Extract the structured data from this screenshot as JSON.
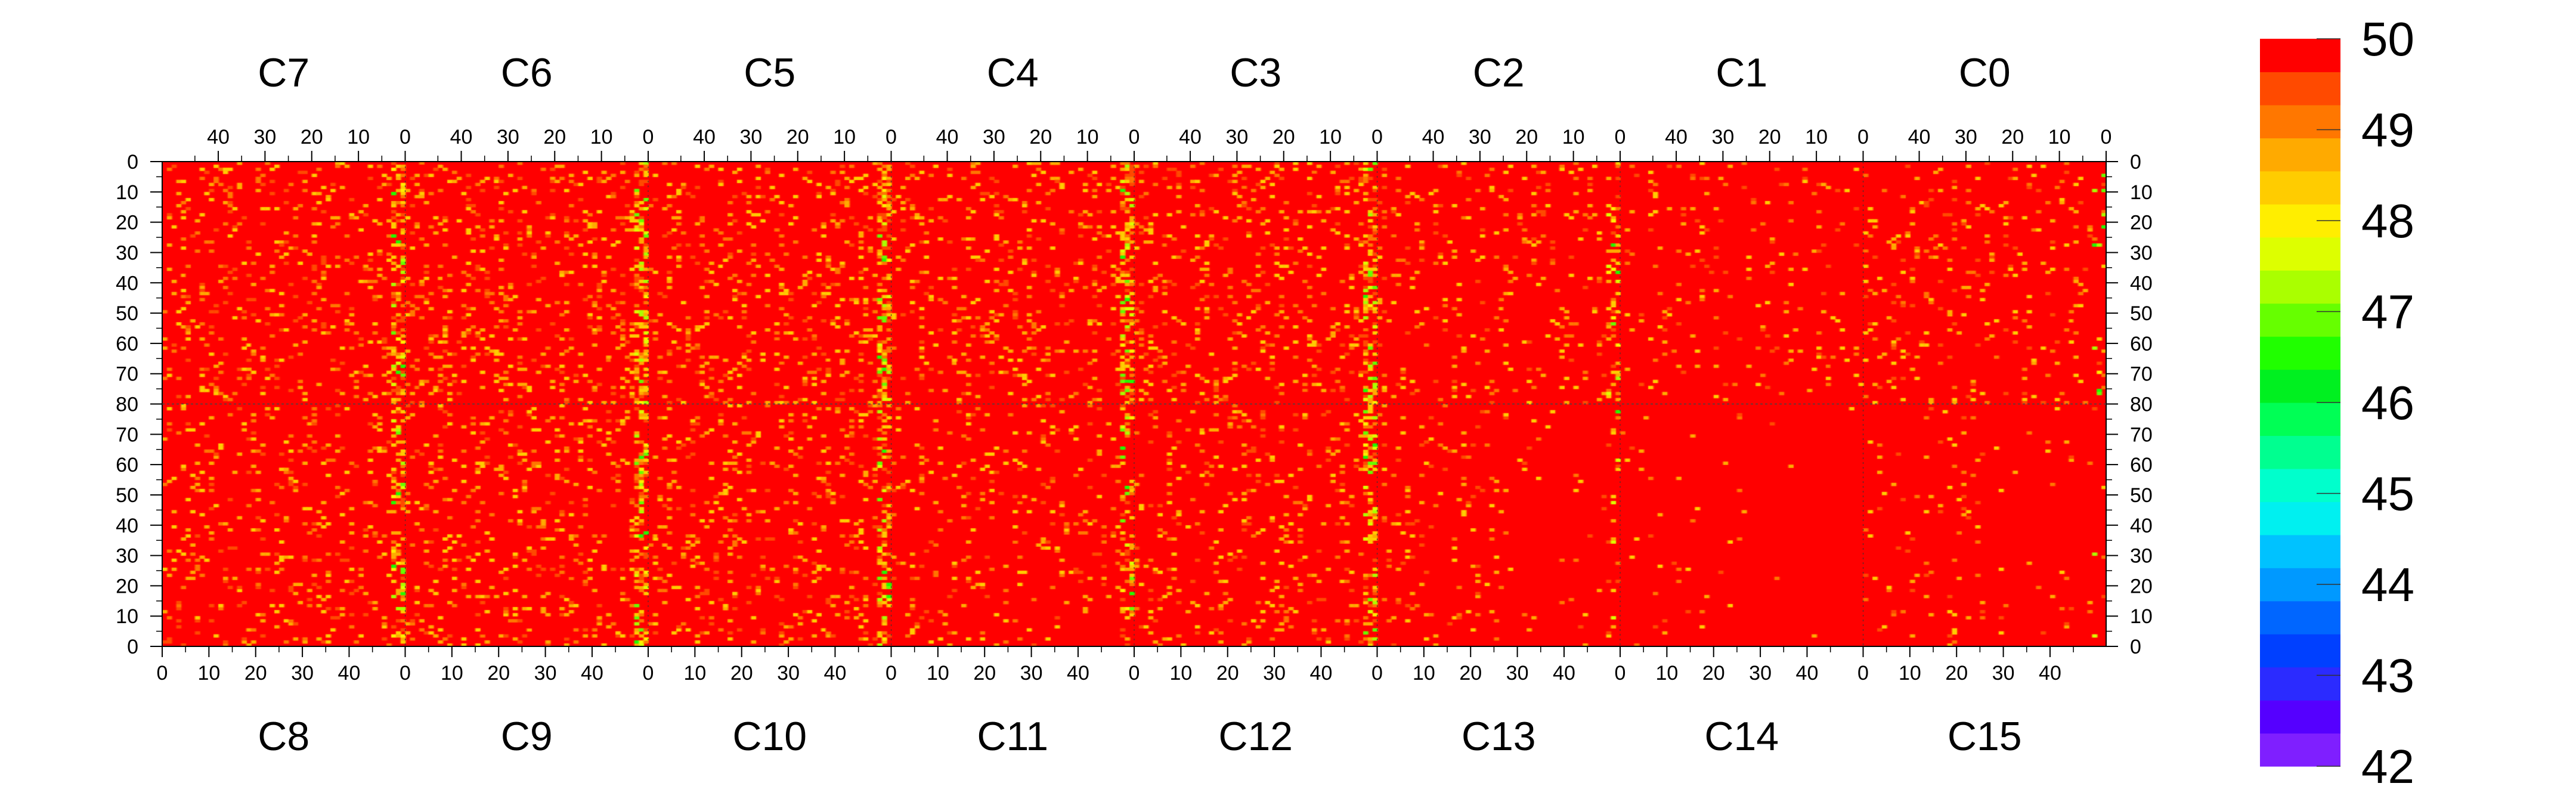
{
  "chart_data": {
    "type": "heatmap",
    "title": "",
    "xlabel": "",
    "ylabel": "",
    "top_chips": [
      "C7",
      "C6",
      "C5",
      "C4",
      "C3",
      "C2",
      "C1",
      "C0"
    ],
    "bottom_chips": [
      "C8",
      "C9",
      "C10",
      "C11",
      "C12",
      "C13",
      "C14",
      "C15"
    ],
    "chip_columns": 52,
    "chip_rows": 80,
    "top_x_ticks": [
      "40",
      "30",
      "20",
      "10",
      "0"
    ],
    "bottom_x_ticks": [
      "0",
      "10",
      "20",
      "30",
      "40"
    ],
    "top_half_y_ticks": [
      "0",
      "10",
      "20",
      "30",
      "40",
      "50",
      "60",
      "70",
      "80"
    ],
    "bottom_half_y_ticks": [
      "70",
      "60",
      "50",
      "40",
      "30",
      "20",
      "10",
      "0"
    ],
    "zlim": [
      42,
      50
    ],
    "colorbar_ticks": [
      "50",
      "49",
      "48",
      "47",
      "46",
      "45",
      "44",
      "43",
      "42"
    ],
    "colorbar_colors": [
      "#7f1fff",
      "#5500ff",
      "#2b2bff",
      "#0040ff",
      "#0066ff",
      "#0099ff",
      "#00c2ff",
      "#00f0f0",
      "#00ffcc",
      "#00ff90",
      "#00ff55",
      "#00f020",
      "#20ff00",
      "#66ff00",
      "#aaff00",
      "#ddff00",
      "#ffee00",
      "#ffcc00",
      "#ffaa00",
      "#ff7700",
      "#ff4a00",
      "#ff0000"
    ],
    "dominant_value": 50,
    "hotspot_column_description": "values down to ~46-48 concentrated near chip edge columns"
  }
}
